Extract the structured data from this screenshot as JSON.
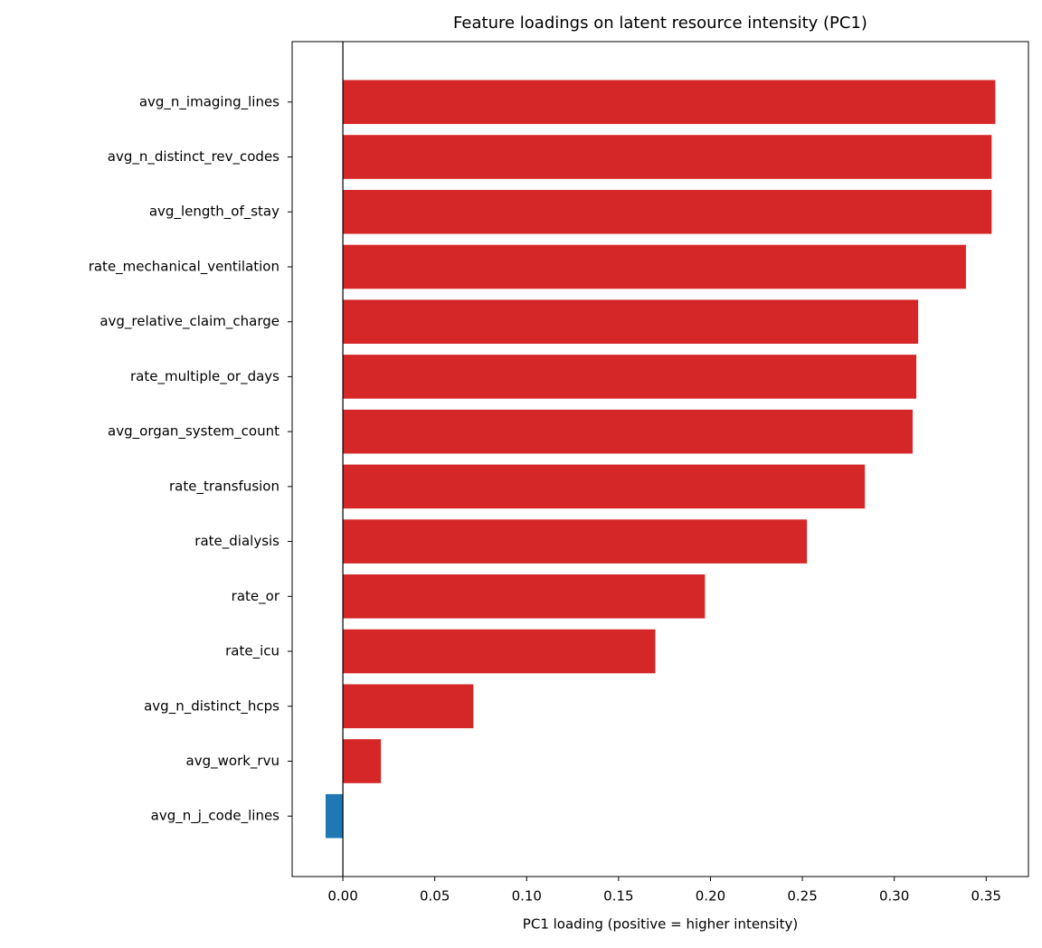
{
  "chart_data": {
    "type": "barh",
    "title": "Feature loadings on latent resource intensity (PC1)",
    "xlabel": "PC1 loading (positive = higher intensity)",
    "categories": [
      "avg_n_imaging_lines",
      "avg_n_distinct_rev_codes",
      "avg_length_of_stay",
      "rate_mechanical_ventilation",
      "avg_relative_claim_charge",
      "rate_multiple_or_days",
      "avg_organ_system_count",
      "rate_transfusion",
      "rate_dialysis",
      "rate_or",
      "rate_icu",
      "avg_n_distinct_hcps",
      "avg_work_rvu",
      "avg_n_j_code_lines"
    ],
    "values": [
      0.355,
      0.353,
      0.353,
      0.339,
      0.313,
      0.312,
      0.31,
      0.284,
      0.2525,
      0.197,
      0.17,
      0.071,
      0.0207,
      -0.0094
    ],
    "colors": [
      "#d62728",
      "#d62728",
      "#d62728",
      "#d62728",
      "#d62728",
      "#d62728",
      "#d62728",
      "#d62728",
      "#d62728",
      "#d62728",
      "#d62728",
      "#d62728",
      "#d62728",
      "#1f77b4"
    ],
    "xlim": [
      -0.0276,
      0.373
    ],
    "xticks": [
      {
        "value": 0,
        "label": "0.00"
      },
      {
        "value": 0.05,
        "label": "0.05"
      },
      {
        "value": 0.1,
        "label": "0.10"
      },
      {
        "value": 0.15,
        "label": "0.15"
      },
      {
        "value": 0.2,
        "label": "0.20"
      },
      {
        "value": 0.25,
        "label": "0.25"
      },
      {
        "value": 0.3,
        "label": "0.30"
      },
      {
        "value": 0.35,
        "label": "0.35"
      }
    ],
    "grid": false
  }
}
